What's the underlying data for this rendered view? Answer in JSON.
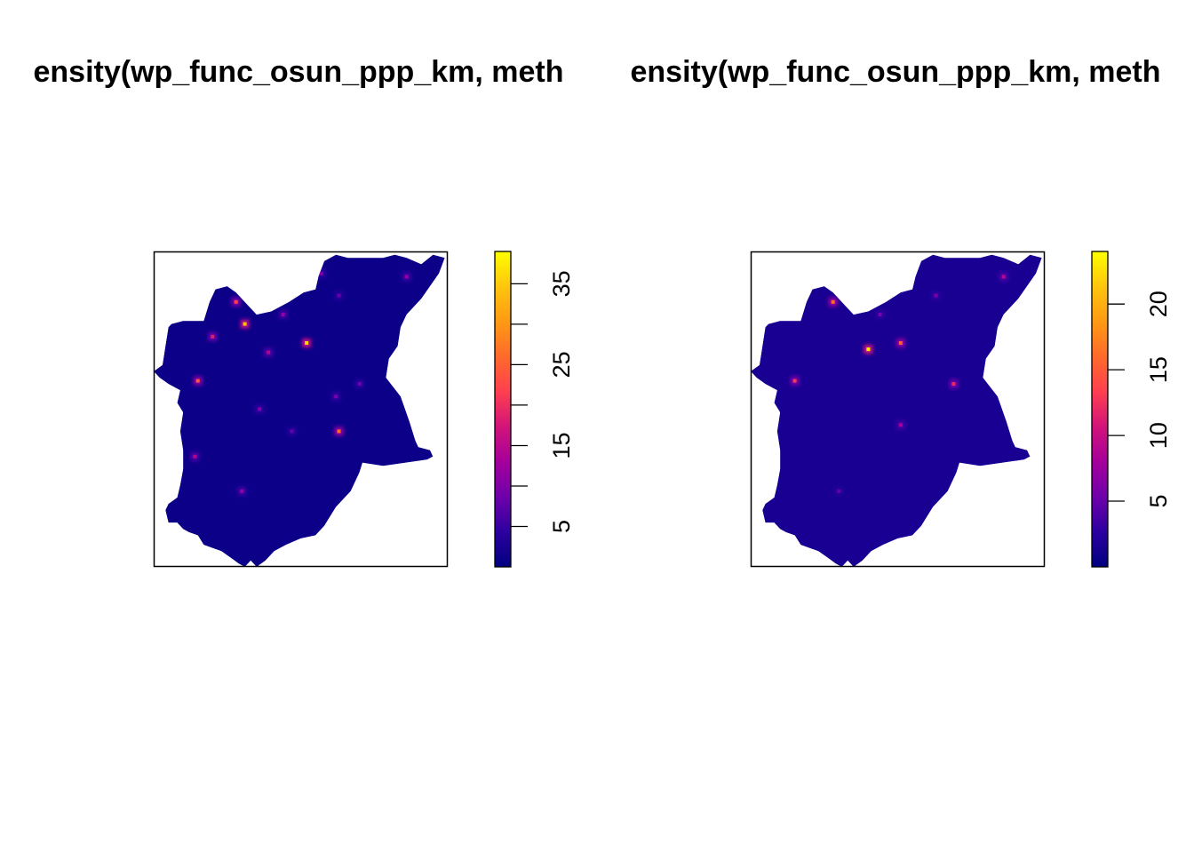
{
  "chart_data": [
    {
      "type": "heatmap",
      "title": "density(wp_func_osun_ppp_km, method = \"kernel\")",
      "title_visible": "ensity(wp_func_osun_ppp_km, meth",
      "colorscale": [
        "#000080",
        "#2d00a0",
        "#6e00ab",
        "#a5009b",
        "#d2147a",
        "#ff3f4f",
        "#ff6a2b",
        "#ff9a14",
        "#ffc50d",
        "#ffff00"
      ],
      "zlim": [
        0,
        39
      ],
      "legend_ticks": [
        5,
        10,
        15,
        20,
        25,
        30,
        35
      ],
      "legend_tick_labels": [
        "5",
        "",
        "15",
        "",
        "25",
        "",
        "35"
      ],
      "background_value": 1.2,
      "hotspots": [
        {
          "x": 0.28,
          "y": 0.84,
          "value": 22
        },
        {
          "x": 0.31,
          "y": 0.77,
          "value": 34
        },
        {
          "x": 0.44,
          "y": 0.8,
          "value": 12
        },
        {
          "x": 0.52,
          "y": 0.71,
          "value": 36
        },
        {
          "x": 0.39,
          "y": 0.68,
          "value": 14
        },
        {
          "x": 0.2,
          "y": 0.73,
          "value": 18
        },
        {
          "x": 0.15,
          "y": 0.59,
          "value": 24
        },
        {
          "x": 0.62,
          "y": 0.54,
          "value": 10
        },
        {
          "x": 0.7,
          "y": 0.58,
          "value": 9
        },
        {
          "x": 0.63,
          "y": 0.86,
          "value": 8
        },
        {
          "x": 0.57,
          "y": 0.93,
          "value": 10
        },
        {
          "x": 0.86,
          "y": 0.92,
          "value": 12
        },
        {
          "x": 0.47,
          "y": 0.43,
          "value": 8
        },
        {
          "x": 0.63,
          "y": 0.43,
          "value": 26
        },
        {
          "x": 0.36,
          "y": 0.5,
          "value": 10
        },
        {
          "x": 0.14,
          "y": 0.35,
          "value": 14
        },
        {
          "x": 0.3,
          "y": 0.24,
          "value": 12
        }
      ]
    },
    {
      "type": "heatmap",
      "title": "density(wp_func_osun_ppp_km, method = \"kernel\")",
      "title_visible": "ensity(wp_func_osun_ppp_km, meth",
      "colorscale": [
        "#000080",
        "#2d00a0",
        "#6e00ab",
        "#a5009b",
        "#d2147a",
        "#ff3f4f",
        "#ff6a2b",
        "#ff9a14",
        "#ffc50d",
        "#ffff00"
      ],
      "zlim": [
        0,
        24
      ],
      "legend_ticks": [
        5,
        10,
        15,
        20
      ],
      "legend_tick_labels": [
        "5",
        "10",
        "15",
        "20"
      ],
      "background_value": 1.5,
      "hotspots": [
        {
          "x": 0.28,
          "y": 0.84,
          "value": 16
        },
        {
          "x": 0.4,
          "y": 0.69,
          "value": 23
        },
        {
          "x": 0.51,
          "y": 0.71,
          "value": 15
        },
        {
          "x": 0.15,
          "y": 0.59,
          "value": 13
        },
        {
          "x": 0.69,
          "y": 0.58,
          "value": 12
        },
        {
          "x": 0.51,
          "y": 0.45,
          "value": 8
        },
        {
          "x": 0.86,
          "y": 0.92,
          "value": 9
        },
        {
          "x": 0.63,
          "y": 0.86,
          "value": 6
        },
        {
          "x": 0.44,
          "y": 0.8,
          "value": 6
        },
        {
          "x": 0.65,
          "y": 0.19,
          "value": 6
        },
        {
          "x": 0.3,
          "y": 0.24,
          "value": 5
        }
      ]
    }
  ]
}
